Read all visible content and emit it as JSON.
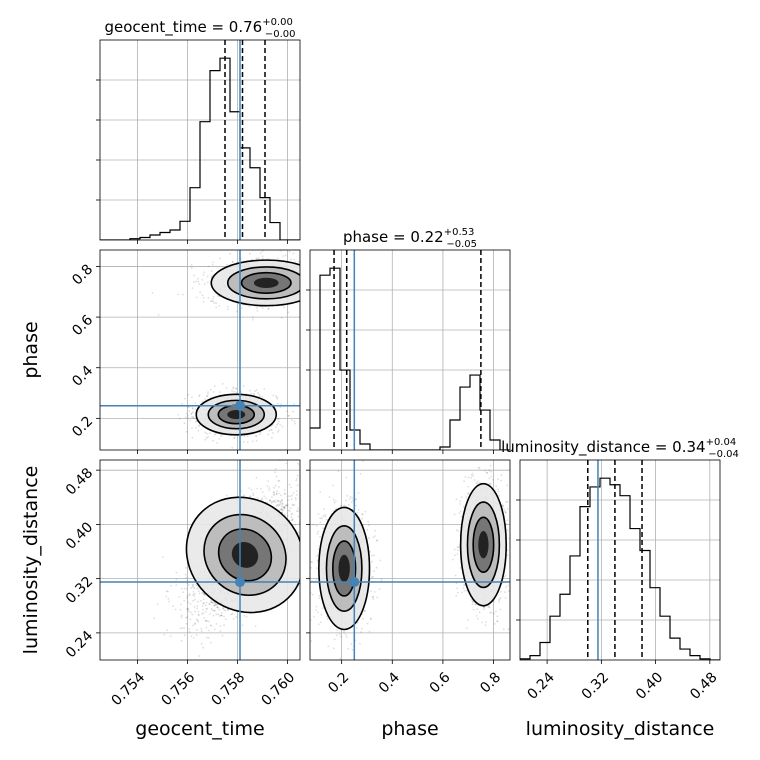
{
  "chart_data": {
    "type": "corner",
    "parameters": [
      "geocent_time",
      "phase",
      "luminosity_distance"
    ],
    "axis_labels": [
      "geocent_time",
      "phase",
      "luminosity_distance"
    ],
    "ranges": [
      [
        0.7525,
        0.7605
      ],
      [
        0.075,
        0.865
      ],
      [
        0.2,
        0.495
      ]
    ],
    "ticks": [
      {
        "values": [
          0.754,
          0.756,
          0.758,
          0.76
        ],
        "labels": [
          "0.754",
          "0.756",
          "0.758",
          "0.760"
        ]
      },
      {
        "values": [
          0.2,
          0.4,
          0.6,
          0.8
        ],
        "labels": [
          "0.2",
          "0.4",
          "0.6",
          "0.8"
        ]
      },
      {
        "values": [
          0.24,
          0.32,
          0.4,
          0.48
        ],
        "labels": [
          "0.24",
          "0.32",
          "0.40",
          "0.48"
        ]
      }
    ],
    "truths": [
      0.7581,
      0.25,
      0.315
    ],
    "truth_color": "#4682b4",
    "grid": true,
    "titles": [
      {
        "main": "geocent_time = 0.76",
        "sup": "+0.00",
        "sub": "−0.00"
      },
      {
        "main": "phase = 0.22",
        "sup": "+0.53",
        "sub": "−0.05"
      },
      {
        "main": "luminosity_distance = 0.34",
        "sup": "+0.04",
        "sub": "−0.04"
      }
    ],
    "histograms": [
      {
        "parameter": "geocent_time",
        "bin_edges": [
          0.7525,
          0.7529,
          0.7533,
          0.7537,
          0.7541,
          0.7545,
          0.7549,
          0.7553,
          0.7557,
          0.7561,
          0.7565,
          0.7569,
          0.7573,
          0.7577,
          0.7581,
          0.7585,
          0.7589,
          0.7593,
          0.7597,
          0.7601,
          0.7605
        ],
        "counts": [
          0,
          0,
          0,
          1,
          2,
          4,
          6,
          8,
          15,
          42,
          95,
          136,
          146,
          103,
          74,
          58,
          34,
          14,
          0,
          0
        ],
        "quantiles": [
          0.7575,
          0.7582,
          0.7591
        ]
      },
      {
        "parameter": "phase",
        "bin_edges": [
          0.075,
          0.1145,
          0.154,
          0.1935,
          0.233,
          0.2725,
          0.312,
          0.3515,
          0.391,
          0.4305,
          0.47,
          0.5095,
          0.549,
          0.5885,
          0.628,
          0.6675,
          0.707,
          0.7465,
          0.786,
          0.8255,
          0.865
        ],
        "counts": [
          22,
          175,
          182,
          80,
          20,
          6,
          0,
          0,
          0,
          0,
          0,
          0,
          0,
          3,
          30,
          63,
          75,
          40,
          10,
          0
        ],
        "quantiles": [
          0.17,
          0.22,
          0.75
        ]
      },
      {
        "parameter": "luminosity_distance",
        "bin_edges": [
          0.2,
          0.21475,
          0.2295,
          0.24425,
          0.259,
          0.27375,
          0.2885,
          0.30325,
          0.318,
          0.33275,
          0.3475,
          0.36225,
          0.377,
          0.39175,
          0.4065,
          0.42125,
          0.436,
          0.45075,
          0.4655,
          0.48025,
          0.495
        ],
        "counts": [
          1,
          4,
          16,
          40,
          60,
          95,
          140,
          158,
          166,
          160,
          150,
          120,
          100,
          66,
          40,
          20,
          10,
          4,
          1,
          0
        ],
        "quantiles": [
          0.3,
          0.34,
          0.38
        ]
      }
    ],
    "contours_2d": [
      {
        "x": "geocent_time",
        "y": "phase",
        "modes": [
          {
            "center": [
              0.75795,
              0.215
            ],
            "spread": [
              0.0008,
              0.04
            ]
          },
          {
            "center": [
              0.75915,
              0.735
            ],
            "spread": [
              0.0011,
              0.045
            ]
          }
        ],
        "levels": 3
      },
      {
        "x": "geocent_time",
        "y": "luminosity_distance",
        "modes": [
          {
            "center": [
              0.7583,
              0.355
            ],
            "spread": [
              0.0011,
              0.045
            ],
            "correlation": 0.65
          }
        ],
        "levels": 3
      },
      {
        "x": "phase",
        "y": "luminosity_distance",
        "modes": [
          {
            "center": [
              0.21,
              0.335
            ],
            "spread": [
              0.05,
              0.045
            ]
          },
          {
            "center": [
              0.76,
              0.37
            ],
            "spread": [
              0.045,
              0.045
            ]
          }
        ],
        "levels": 3
      }
    ]
  }
}
